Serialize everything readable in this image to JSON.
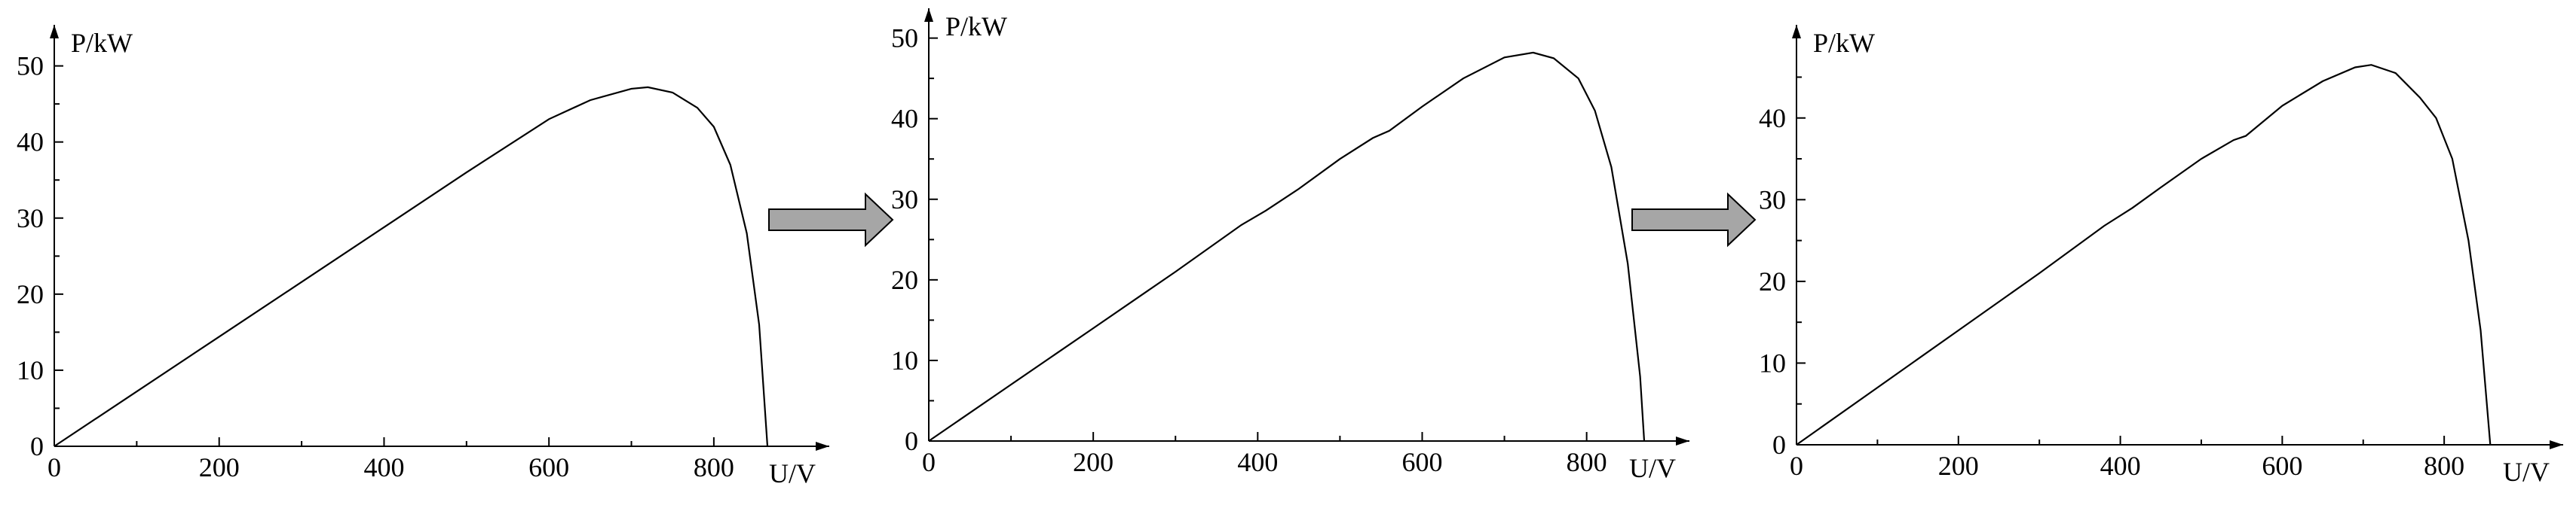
{
  "chart_data": [
    {
      "type": "line",
      "x_label": "U/V",
      "y_label": "P/kW",
      "xlim": [
        0,
        940
      ],
      "ylim": [
        0,
        55.4
      ],
      "xticks": [
        0,
        200,
        400,
        600,
        800
      ],
      "yticks": [
        0,
        10,
        20,
        30,
        40,
        50
      ],
      "minor_xticks": [
        100,
        300,
        500,
        700
      ],
      "minor_yticks": [
        5,
        15,
        25,
        35,
        45
      ],
      "series": [
        {
          "color": "#000000",
          "x": [
            0,
            100,
            200,
            300,
            400,
            500,
            600,
            650,
            700,
            720,
            750,
            780,
            800,
            820,
            840,
            855,
            865
          ],
          "values": [
            0,
            7.2,
            14.4,
            21.6,
            28.8,
            36,
            43,
            45.5,
            47,
            47.2,
            46.5,
            44.5,
            42,
            37,
            28,
            16,
            0
          ]
        }
      ]
    },
    {
      "type": "line",
      "x_label": "U/V",
      "y_label": "P/kW",
      "xlim": [
        0,
        925
      ],
      "ylim": [
        0,
        53.7
      ],
      "xticks": [
        0,
        200,
        400,
        600,
        800
      ],
      "yticks": [
        0,
        10,
        20,
        30,
        40,
        50
      ],
      "minor_xticks": [
        100,
        300,
        500,
        700
      ],
      "minor_yticks": [
        5,
        15,
        25,
        35,
        45
      ],
      "series": [
        {
          "color": "#000000",
          "x": [
            0,
            100,
            200,
            300,
            380,
            410,
            450,
            500,
            540,
            560,
            600,
            650,
            700,
            735,
            760,
            790,
            810,
            830,
            850,
            865,
            870
          ],
          "values": [
            0,
            7,
            14,
            21,
            26.8,
            28.6,
            31.3,
            35,
            37.6,
            38.5,
            41.5,
            45,
            47.6,
            48.2,
            47.5,
            45,
            41,
            34,
            22,
            8,
            0
          ]
        }
      ]
    },
    {
      "type": "line",
      "x_label": "U/V",
      "y_label": "P/kW",
      "xlim": [
        0,
        947
      ],
      "ylim": [
        0,
        51.4
      ],
      "xticks": [
        0,
        200,
        400,
        600,
        800
      ],
      "yticks": [
        0,
        10,
        20,
        30,
        40
      ],
      "minor_xticks": [
        100,
        300,
        500,
        700
      ],
      "minor_yticks": [
        5,
        15,
        25,
        35,
        45
      ],
      "series": [
        {
          "color": "#000000",
          "x": [
            0,
            100,
            200,
            300,
            380,
            415,
            450,
            500,
            540,
            555,
            600,
            650,
            690,
            710,
            740,
            770,
            790,
            810,
            830,
            845,
            857
          ],
          "values": [
            0,
            7,
            14,
            21,
            26.8,
            29,
            31.5,
            35,
            37.3,
            37.8,
            41.5,
            44.5,
            46.2,
            46.5,
            45.5,
            42.5,
            40,
            35,
            25,
            14,
            0
          ]
        }
      ]
    }
  ]
}
